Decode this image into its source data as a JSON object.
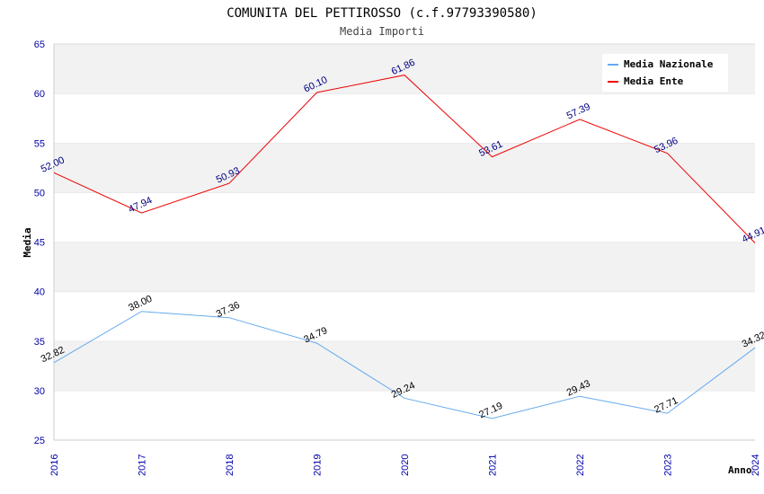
{
  "chart_data": {
    "type": "line",
    "title": "COMUNITA DEL PETTIROSSO (c.f.97793390580)",
    "subtitle": "Media Importi",
    "xlabel": "Anno",
    "ylabel": "Media",
    "x": [
      "2016",
      "2017",
      "2018",
      "2019",
      "2020",
      "2021",
      "2022",
      "2023",
      "2024"
    ],
    "ylim": [
      25,
      65
    ],
    "yticks": [
      "25",
      "30",
      "35",
      "40",
      "45",
      "50",
      "55",
      "60",
      "65"
    ],
    "grid": "horizontal bands",
    "legend_position": "top-right",
    "series": [
      {
        "name": "Media Nazionale",
        "color": "#66aaee",
        "label_color": "#000000",
        "values": [
          32.82,
          38.0,
          37.36,
          34.79,
          29.24,
          27.19,
          29.43,
          27.71,
          34.32
        ],
        "labels": [
          "32.82",
          "38.00",
          "37.36",
          "34.79",
          "29.24",
          "27.19",
          "29.43",
          "27.71",
          "34.32"
        ]
      },
      {
        "name": "Media Ente",
        "color": "#ee0000",
        "label_color": "#000080",
        "values": [
          52.0,
          47.94,
          50.93,
          60.1,
          61.86,
          53.61,
          57.39,
          53.96,
          44.91
        ],
        "labels": [
          "52.00",
          "47.94",
          "50.93",
          "60.10",
          "61.86",
          "53.61",
          "57.39",
          "53.96",
          "44.91"
        ]
      }
    ]
  }
}
